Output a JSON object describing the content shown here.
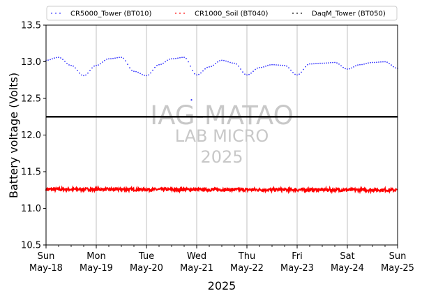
{
  "chart_data": {
    "type": "line",
    "xlabel": "2025",
    "ylabel": "Battery voltage (Volts)",
    "ylim": [
      10.5,
      13.5
    ],
    "yticks": [
      "10.5",
      "11.0",
      "11.5",
      "12.0",
      "12.5",
      "13.0",
      "13.5"
    ],
    "xlim": [
      "2025-05-18 00:00",
      "2025-05-25 00:00"
    ],
    "xticks": [
      {
        "day": "Sun",
        "date": "May-18"
      },
      {
        "day": "Mon",
        "date": "May-19"
      },
      {
        "day": "Tue",
        "date": "May-20"
      },
      {
        "day": "Wed",
        "date": "May-21"
      },
      {
        "day": "Thu",
        "date": "May-22"
      },
      {
        "day": "Fri",
        "date": "May-23"
      },
      {
        "day": "Sat",
        "date": "May-24"
      },
      {
        "day": "Sun",
        "date": "May-25"
      }
    ],
    "grid": "vertical",
    "legend_position": "top",
    "series": [
      {
        "name": "CR5000_Tower (BT010)",
        "color": "#3333ff",
        "style": "dotted",
        "x": [
          "2025-05-18 00:00",
          "2025-05-18 06:00",
          "2025-05-18 12:00",
          "2025-05-18 18:00",
          "2025-05-19 00:00",
          "2025-05-19 06:00",
          "2025-05-19 12:00",
          "2025-05-19 18:00",
          "2025-05-20 00:00",
          "2025-05-20 06:00",
          "2025-05-20 12:00",
          "2025-05-20 18:00",
          "2025-05-21 00:00",
          "2025-05-21 06:00",
          "2025-05-21 12:00",
          "2025-05-21 18:00",
          "2025-05-22 00:00",
          "2025-05-22 06:00",
          "2025-05-22 12:00",
          "2025-05-22 18:00",
          "2025-05-23 00:00",
          "2025-05-23 06:00",
          "2025-05-23 12:00",
          "2025-05-23 18:00",
          "2025-05-24 00:00",
          "2025-05-24 06:00",
          "2025-05-24 12:00",
          "2025-05-24 18:00",
          "2025-05-25 00:00"
        ],
        "y": [
          13.02,
          13.06,
          12.95,
          12.81,
          12.95,
          13.04,
          13.06,
          12.87,
          12.81,
          12.96,
          13.04,
          13.06,
          12.82,
          12.93,
          13.02,
          12.98,
          12.82,
          12.92,
          12.96,
          12.95,
          12.82,
          12.97,
          12.98,
          12.99,
          12.9,
          12.96,
          12.99,
          13.0,
          12.91
        ],
        "outlier": {
          "x": "2025-05-20 21:30",
          "y": 12.48
        }
      },
      {
        "name": "CR1000_Soil (BT040)",
        "color": "#ff0000",
        "style": "dotted",
        "x": [
          "2025-05-18 00:00",
          "2025-05-25 00:00"
        ],
        "y": [
          11.26,
          11.25
        ],
        "noise": 0.02
      },
      {
        "name": "DaqM_Tower (BT050)",
        "color": "#000000",
        "style": "dotted",
        "x": [
          "2025-05-18 00:00",
          "2025-05-25 00:00"
        ],
        "y": [
          12.25,
          12.25
        ]
      }
    ],
    "watermark": {
      "line1": "IAG-MATAO",
      "line2": "LAB MICRO",
      "line3": "2025"
    }
  }
}
